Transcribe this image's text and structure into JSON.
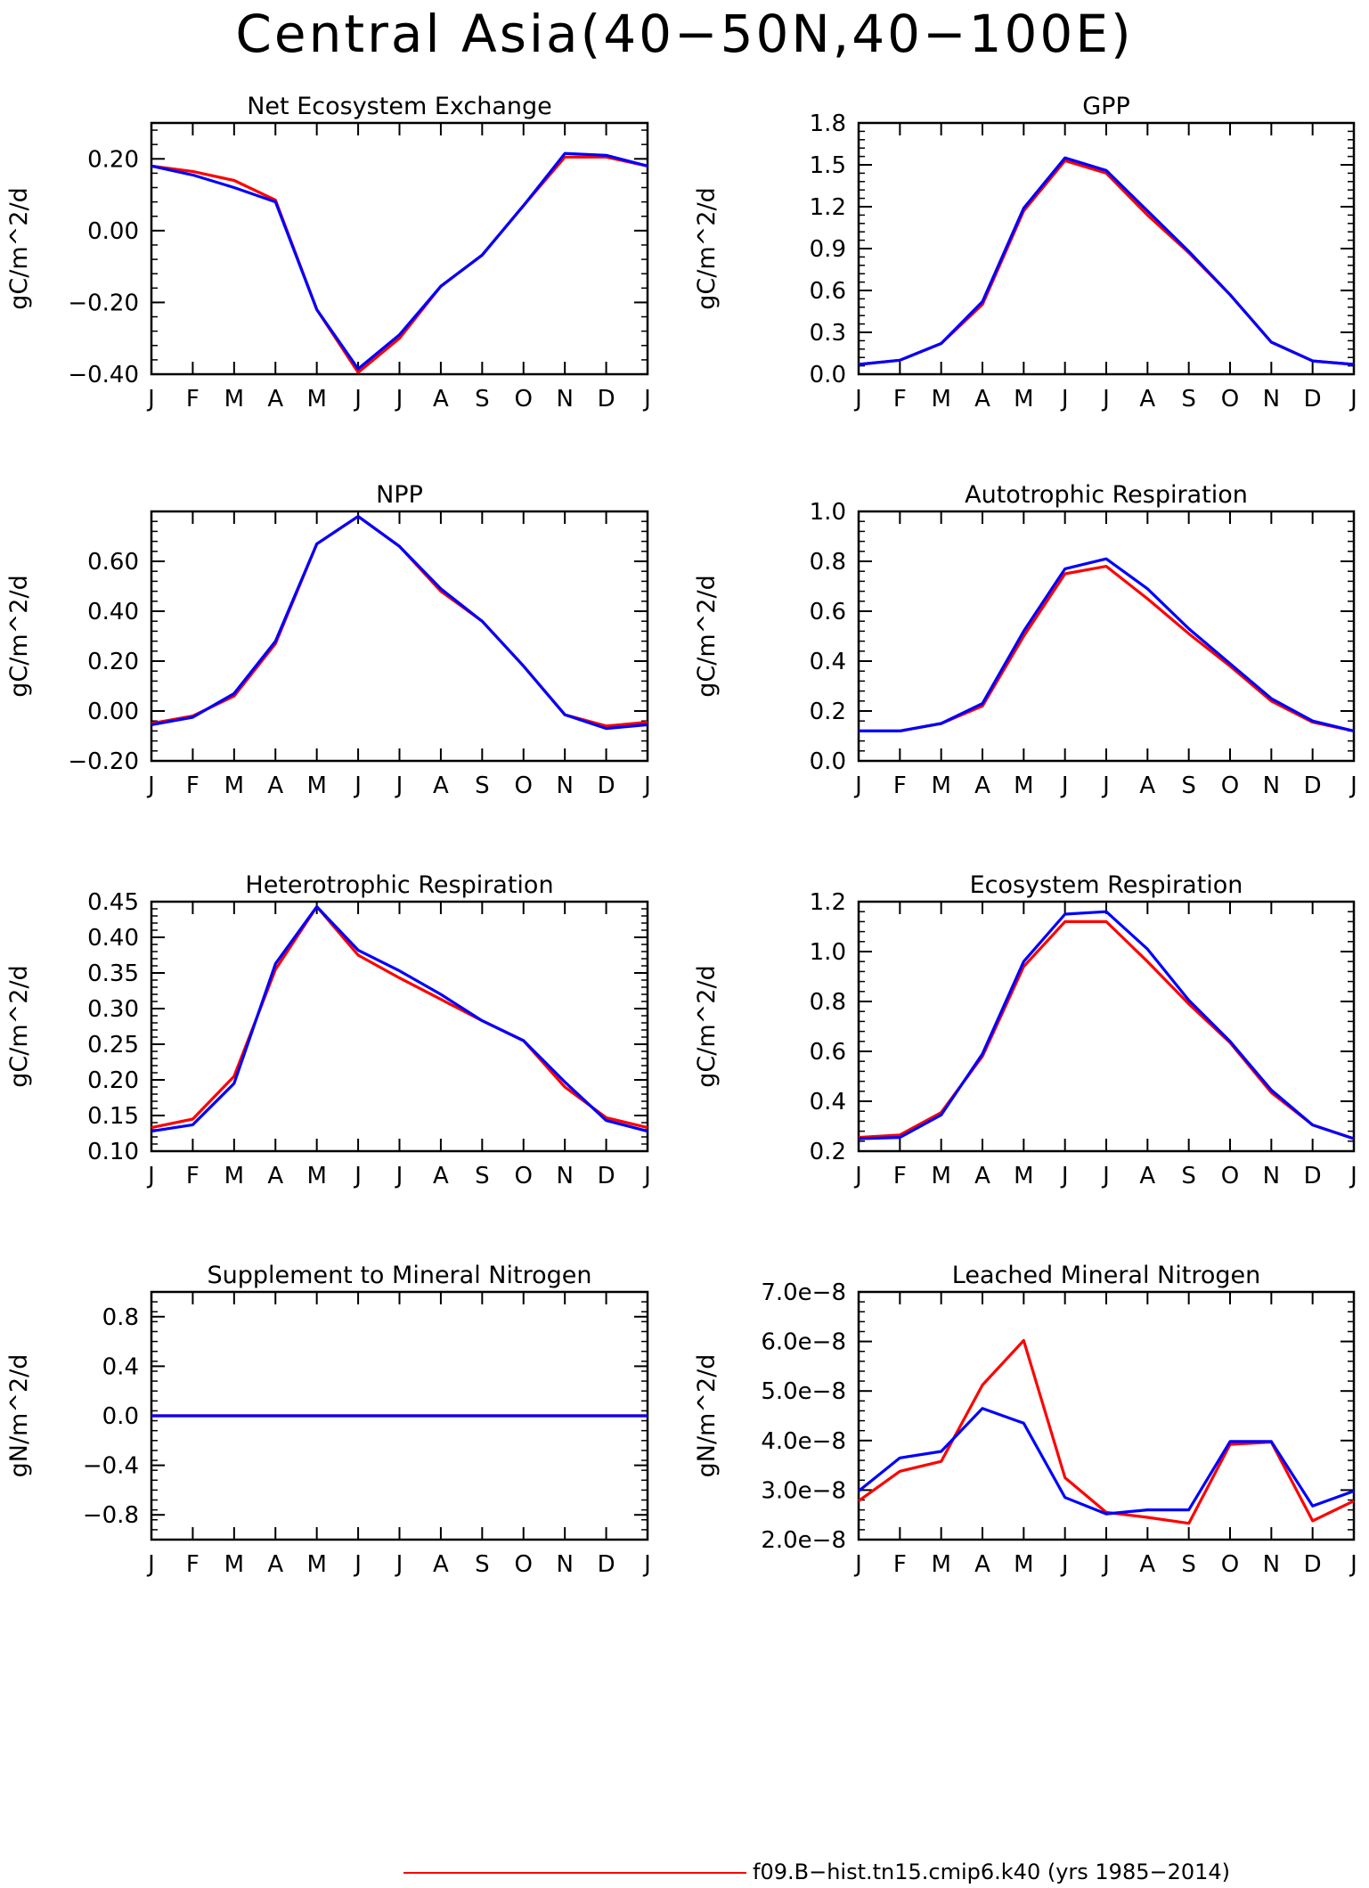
{
  "title": "Central Asia(40−50N,40−100E)",
  "legend": {
    "label": "f09.B−hist.tn15.cmip6.k40 (yrs 1985−2014)",
    "color": "#ff0000"
  },
  "colors": {
    "red": "#ff0000",
    "blue": "#0000ff"
  },
  "chart_data": [
    {
      "type": "line",
      "title": "Net Ecosystem Exchange",
      "ylabel": "gC/m^2/d",
      "categories": [
        "J",
        "F",
        "M",
        "A",
        "M",
        "J",
        "J",
        "A",
        "S",
        "O",
        "N",
        "D",
        "J"
      ],
      "yticks": [
        "−0.40",
        "−0.20",
        "0.00",
        "0.20"
      ],
      "ytick_values": [
        -0.4,
        -0.2,
        0.0,
        0.2
      ],
      "ylim": [
        -0.4,
        0.3
      ],
      "series": [
        {
          "color": "#ff0000",
          "values": [
            0.18,
            0.165,
            0.14,
            0.085,
            -0.22,
            -0.395,
            -0.3,
            -0.155,
            -0.068,
            0.07,
            0.205,
            0.205,
            0.18
          ]
        },
        {
          "color": "#0000ff",
          "values": [
            0.18,
            0.155,
            0.12,
            0.08,
            -0.22,
            -0.385,
            -0.29,
            -0.155,
            -0.068,
            0.07,
            0.215,
            0.21,
            0.18
          ]
        }
      ]
    },
    {
      "type": "line",
      "title": "GPP",
      "ylabel": "gC/m^2/d",
      "categories": [
        "J",
        "F",
        "M",
        "A",
        "M",
        "J",
        "J",
        "A",
        "S",
        "O",
        "N",
        "D",
        "J"
      ],
      "yticks": [
        "0.0",
        "0.3",
        "0.6",
        "0.9",
        "1.2",
        "1.5",
        "1.8"
      ],
      "ytick_values": [
        0,
        0.3,
        0.6,
        0.9,
        1.2,
        1.5,
        1.8
      ],
      "ylim": [
        0,
        1.8
      ],
      "series": [
        {
          "color": "#ff0000",
          "values": [
            0.07,
            0.1,
            0.22,
            0.5,
            1.17,
            1.53,
            1.44,
            1.14,
            0.87,
            0.57,
            0.23,
            0.095,
            0.07
          ]
        },
        {
          "color": "#0000ff",
          "values": [
            0.07,
            0.1,
            0.22,
            0.52,
            1.19,
            1.55,
            1.46,
            1.17,
            0.88,
            0.57,
            0.23,
            0.095,
            0.07
          ]
        }
      ]
    },
    {
      "type": "line",
      "title": "NPP",
      "ylabel": "gC/m^2/d",
      "categories": [
        "J",
        "F",
        "M",
        "A",
        "M",
        "J",
        "J",
        "A",
        "S",
        "O",
        "N",
        "D",
        "J"
      ],
      "yticks": [
        "−0.20",
        "0.00",
        "0.20",
        "0.40",
        "0.60"
      ],
      "ytick_values": [
        -0.2,
        0.0,
        0.2,
        0.4,
        0.6
      ],
      "ylim": [
        -0.2,
        0.8
      ],
      "series": [
        {
          "color": "#ff0000",
          "values": [
            -0.05,
            -0.02,
            0.06,
            0.27,
            0.67,
            0.78,
            0.66,
            0.48,
            0.36,
            0.18,
            -0.015,
            -0.06,
            -0.045
          ]
        },
        {
          "color": "#0000ff",
          "values": [
            -0.055,
            -0.025,
            0.07,
            0.28,
            0.67,
            0.78,
            0.66,
            0.49,
            0.36,
            0.18,
            -0.015,
            -0.07,
            -0.055
          ]
        }
      ]
    },
    {
      "type": "line",
      "title": "Autotrophic Respiration",
      "ylabel": "gC/m^2/d",
      "categories": [
        "J",
        "F",
        "M",
        "A",
        "M",
        "J",
        "J",
        "A",
        "S",
        "O",
        "N",
        "D",
        "J"
      ],
      "yticks": [
        "0.0",
        "0.2",
        "0.4",
        "0.6",
        "0.8",
        "1.0"
      ],
      "ytick_values": [
        0,
        0.2,
        0.4,
        0.6,
        0.8,
        1.0
      ],
      "ylim": [
        0,
        1.0
      ],
      "series": [
        {
          "color": "#ff0000",
          "values": [
            0.12,
            0.12,
            0.15,
            0.22,
            0.5,
            0.75,
            0.78,
            0.65,
            0.51,
            0.38,
            0.24,
            0.155,
            0.12
          ]
        },
        {
          "color": "#0000ff",
          "values": [
            0.12,
            0.12,
            0.15,
            0.23,
            0.52,
            0.77,
            0.81,
            0.69,
            0.53,
            0.39,
            0.25,
            0.16,
            0.12
          ]
        }
      ]
    },
    {
      "type": "line",
      "title": "Heterotrophic Respiration",
      "ylabel": "gC/m^2/d",
      "categories": [
        "J",
        "F",
        "M",
        "A",
        "M",
        "J",
        "J",
        "A",
        "S",
        "O",
        "N",
        "D",
        "J"
      ],
      "yticks": [
        "0.10",
        "0.15",
        "0.20",
        "0.25",
        "0.30",
        "0.35",
        "0.40",
        "0.45"
      ],
      "ytick_values": [
        0.1,
        0.15,
        0.2,
        0.25,
        0.3,
        0.35,
        0.4,
        0.45
      ],
      "ylim": [
        0.1,
        0.45
      ],
      "series": [
        {
          "color": "#ff0000",
          "values": [
            0.133,
            0.145,
            0.205,
            0.355,
            0.443,
            0.375,
            0.343,
            0.313,
            0.283,
            0.255,
            0.19,
            0.147,
            0.133
          ]
        },
        {
          "color": "#0000ff",
          "values": [
            0.128,
            0.137,
            0.195,
            0.363,
            0.443,
            0.382,
            0.353,
            0.32,
            0.283,
            0.255,
            0.197,
            0.143,
            0.128
          ]
        }
      ]
    },
    {
      "type": "line",
      "title": "Ecosystem Respiration",
      "ylabel": "gC/m^2/d",
      "categories": [
        "J",
        "F",
        "M",
        "A",
        "M",
        "J",
        "J",
        "A",
        "S",
        "O",
        "N",
        "D",
        "J"
      ],
      "yticks": [
        "0.2",
        "0.4",
        "0.6",
        "0.8",
        "1.0",
        "1.2"
      ],
      "ytick_values": [
        0.2,
        0.4,
        0.6,
        0.8,
        1.0,
        1.2
      ],
      "ylim": [
        0.2,
        1.2
      ],
      "series": [
        {
          "color": "#ff0000",
          "values": [
            0.255,
            0.265,
            0.355,
            0.58,
            0.94,
            1.12,
            1.12,
            0.96,
            0.79,
            0.635,
            0.435,
            0.305,
            0.25
          ]
        },
        {
          "color": "#0000ff",
          "values": [
            0.25,
            0.255,
            0.345,
            0.59,
            0.96,
            1.15,
            1.16,
            1.01,
            0.805,
            0.64,
            0.445,
            0.305,
            0.25
          ]
        }
      ]
    },
    {
      "type": "line",
      "title": "Supplement to Mineral Nitrogen",
      "ylabel": "gN/m^2/d",
      "categories": [
        "J",
        "F",
        "M",
        "A",
        "M",
        "J",
        "J",
        "A",
        "S",
        "O",
        "N",
        "D",
        "J"
      ],
      "yticks": [
        "−0.8",
        "−0.4",
        "0.0",
        "0.4",
        "0.8"
      ],
      "ytick_values": [
        -0.8,
        -0.4,
        0.0,
        0.4,
        0.8
      ],
      "ylim": [
        -1.0,
        1.0
      ],
      "series": [
        {
          "color": "#ff0000",
          "values": [
            0,
            0,
            0,
            0,
            0,
            0,
            0,
            0,
            0,
            0,
            0,
            0,
            0
          ]
        },
        {
          "color": "#0000ff",
          "values": [
            0,
            0,
            0,
            0,
            0,
            0,
            0,
            0,
            0,
            0,
            0,
            0,
            0
          ]
        }
      ]
    },
    {
      "type": "line",
      "title": "Leached Mineral Nitrogen",
      "ylabel": "gN/m^2/d",
      "categories": [
        "J",
        "F",
        "M",
        "A",
        "M",
        "J",
        "J",
        "A",
        "S",
        "O",
        "N",
        "D",
        "J"
      ],
      "yticks": [
        "2.0e−8",
        "3.0e−8",
        "4.0e−8",
        "5.0e−8",
        "6.0e−8",
        "7.0e−8"
      ],
      "ytick_values": [
        2e-08,
        3e-08,
        4e-08,
        5e-08,
        6e-08,
        7e-08
      ],
      "ylim": [
        2e-08,
        7e-08
      ],
      "series": [
        {
          "color": "#ff0000",
          "values": [
            2.78e-08,
            3.38e-08,
            3.58e-08,
            5.12e-08,
            6.02e-08,
            3.25e-08,
            2.55e-08,
            2.45e-08,
            2.33e-08,
            3.92e-08,
            3.97e-08,
            2.38e-08,
            2.78e-08
          ]
        },
        {
          "color": "#0000ff",
          "values": [
            2.98e-08,
            3.65e-08,
            3.78e-08,
            4.65e-08,
            4.35e-08,
            2.85e-08,
            2.52e-08,
            2.6e-08,
            2.6e-08,
            3.98e-08,
            3.98e-08,
            2.68e-08,
            2.98e-08
          ]
        }
      ]
    }
  ]
}
